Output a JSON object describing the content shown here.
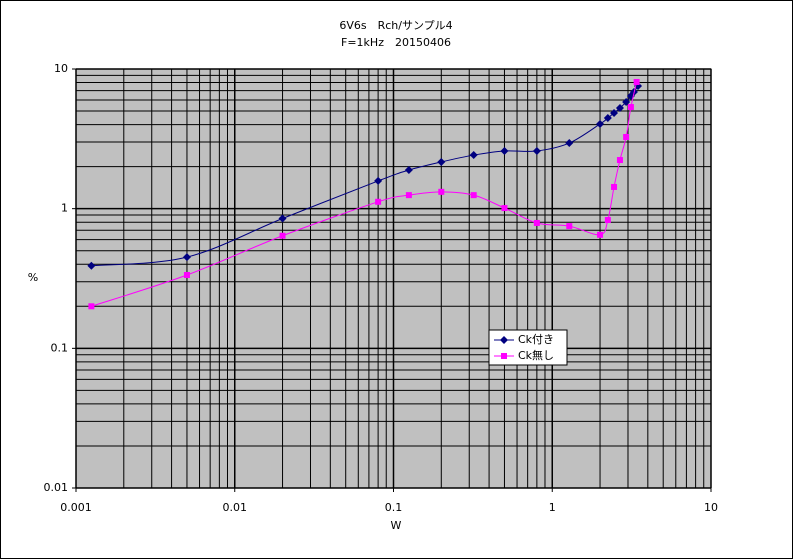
{
  "chart_data": {
    "type": "line",
    "title": "6V6s　Rch/サンプル4",
    "subtitle": "F=1kHz　20150406",
    "x_label": "W",
    "y_label": "%",
    "xscale": "log",
    "yscale": "log",
    "grid": true,
    "minor_grid": true,
    "xlim": [
      0.001,
      10
    ],
    "xticks": [
      0.001,
      0.01,
      0.1,
      1,
      10
    ],
    "ylim": [
      0.01,
      10
    ],
    "yticks": [
      0.01,
      0.1,
      1,
      10
    ],
    "series": [
      {
        "name": "Ck付き",
        "color": "#000080",
        "marker": "diamond",
        "x": [
          0.00125,
          0.005,
          0.02,
          0.08,
          0.125,
          0.2,
          0.32,
          0.5,
          0.8,
          1.28,
          2,
          2.24,
          2.45,
          2.67,
          2.92,
          3.13,
          3.27,
          3.47
        ],
        "values": [
          0.39,
          0.45,
          0.85,
          1.58,
          1.89,
          2.16,
          2.42,
          2.59,
          2.59,
          2.95,
          4.04,
          4.46,
          4.84,
          5.26,
          5.8,
          6.41,
          6.85,
          7.55
        ]
      },
      {
        "name": "Ck無し",
        "color": "#ff00ff",
        "marker": "square",
        "x": [
          0.00125,
          0.005,
          0.02,
          0.08,
          0.125,
          0.2,
          0.32,
          0.5,
          0.8,
          1.28,
          2,
          2.24,
          2.45,
          2.67,
          2.92,
          3.13,
          3.4
        ],
        "values": [
          0.2,
          0.335,
          0.64,
          1.12,
          1.25,
          1.32,
          1.25,
          1.01,
          0.79,
          0.75,
          0.65,
          0.83,
          1.43,
          2.23,
          3.26,
          5.34,
          8.07
        ]
      }
    ]
  }
}
